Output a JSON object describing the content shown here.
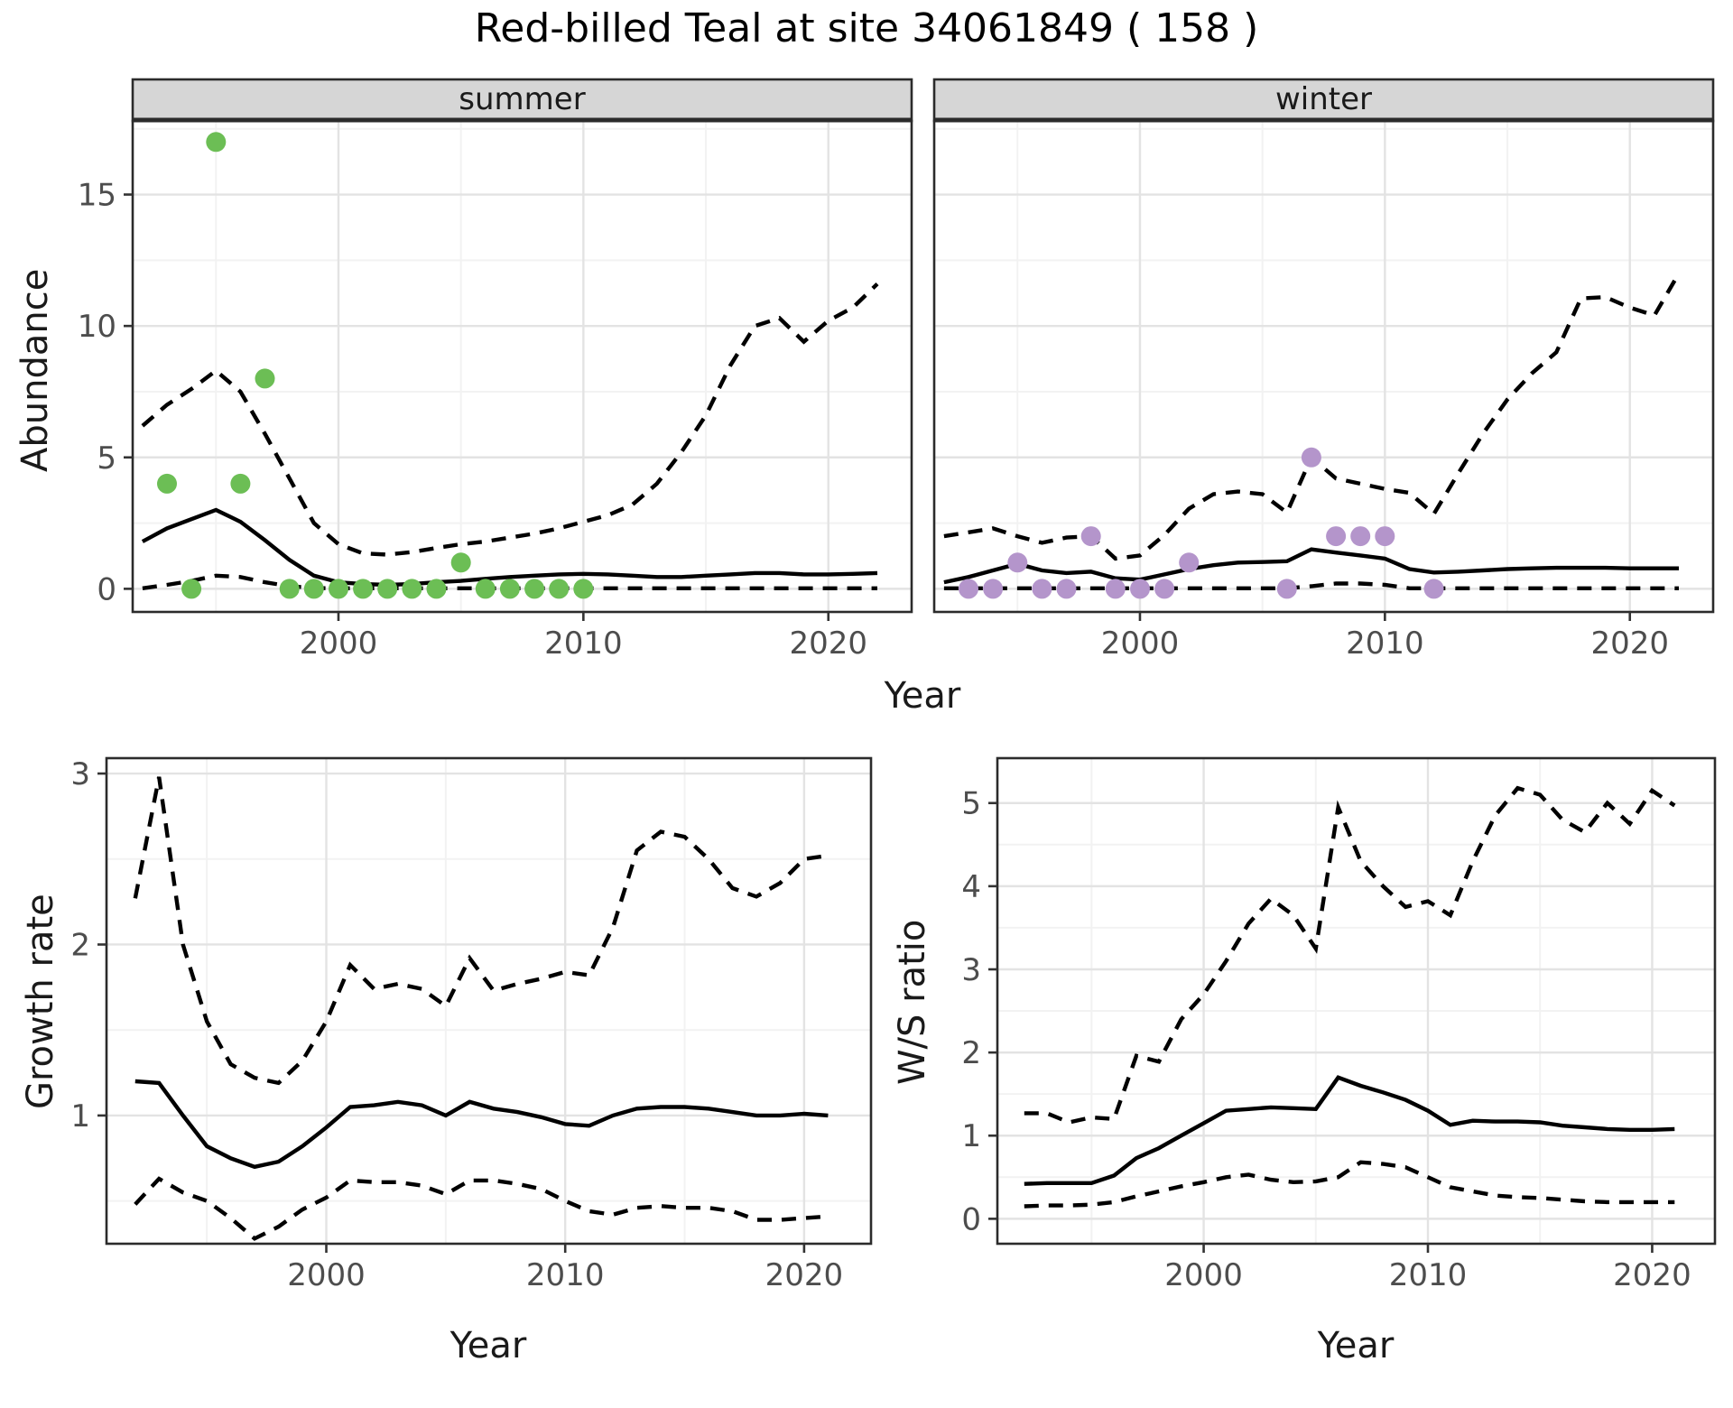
{
  "title": "Red-billed Teal at site 34061849 ( 158 )",
  "axes": {
    "abundance_label": "Abundance",
    "growth_label": "Growth rate",
    "ws_label": "W/S ratio",
    "year_label": "Year"
  },
  "colors": {
    "summer_point": "#6CBE55",
    "winter_point": "#B495CB",
    "line": "#000000",
    "strip_bg": "#D6D6D6",
    "strip_border": "#2B2B2B",
    "panel_border": "#2B2B2B",
    "grid_major": "#E3E3E3",
    "grid_minor": "#F2F2F2",
    "tick_text": "#4D4D4D"
  },
  "chart_data": [
    {
      "type": "line",
      "facet": "summer",
      "ylabel": "Abundance",
      "xlabel": "Year",
      "xlim": [
        1991.6,
        2023.4
      ],
      "ylim": [
        -0.88,
        17.8
      ],
      "x_ticks": [
        2000,
        2010,
        2020
      ],
      "x_minor": [
        1995,
        2005,
        2015
      ],
      "y_ticks": [
        0,
        5,
        10,
        15
      ],
      "y_minor": [
        2.5,
        7.5,
        12.5,
        17.5
      ],
      "years": [
        1992,
        1993,
        1994,
        1995,
        1996,
        1997,
        1998,
        1999,
        2000,
        2001,
        2002,
        2003,
        2004,
        2005,
        2006,
        2007,
        2008,
        2009,
        2010,
        2011,
        2012,
        2013,
        2014,
        2015,
        2016,
        2017,
        2018,
        2019,
        2020,
        2021,
        2022
      ],
      "series": [
        {
          "name": "upper-ci",
          "style": "dashed",
          "values": [
            6.2,
            7.0,
            7.6,
            8.3,
            7.5,
            5.9,
            4.2,
            2.5,
            1.7,
            1.35,
            1.3,
            1.4,
            1.55,
            1.7,
            1.8,
            1.95,
            2.1,
            2.3,
            2.55,
            2.8,
            3.2,
            4.0,
            5.2,
            6.6,
            8.5,
            10.0,
            10.3,
            9.4,
            10.2,
            10.7,
            11.6
          ]
        },
        {
          "name": "lower-ci",
          "style": "dashed",
          "values": [
            0.02,
            0.15,
            0.3,
            0.5,
            0.45,
            0.25,
            0.1,
            0.03,
            0.02,
            0.02,
            0.02,
            0.02,
            0.02,
            0.02,
            0.02,
            0.02,
            0.02,
            0.02,
            0.02,
            0.02,
            0.02,
            0.02,
            0.02,
            0.02,
            0.02,
            0.02,
            0.02,
            0.02,
            0.02,
            0.02,
            0.02
          ]
        },
        {
          "name": "fit",
          "style": "solid",
          "values": [
            1.8,
            2.3,
            2.65,
            3.0,
            2.55,
            1.85,
            1.1,
            0.5,
            0.25,
            0.18,
            0.15,
            0.18,
            0.25,
            0.3,
            0.38,
            0.45,
            0.5,
            0.55,
            0.57,
            0.55,
            0.5,
            0.45,
            0.45,
            0.5,
            0.55,
            0.6,
            0.6,
            0.55,
            0.55,
            0.57,
            0.6
          ]
        }
      ],
      "points": {
        "color_key": "summer_point",
        "years": [
          1993,
          1994,
          1995,
          1996,
          1997,
          1998,
          1999,
          2000,
          2001,
          2002,
          2003,
          2004,
          2005,
          2006,
          2007,
          2008,
          2009,
          2010
        ],
        "values": [
          4,
          0,
          17,
          4,
          8,
          0,
          0,
          0,
          0,
          0,
          0,
          0,
          1,
          0,
          0,
          0,
          0,
          0
        ]
      }
    },
    {
      "type": "line",
      "facet": "winter",
      "ylabel": "Abundance",
      "xlabel": "Year",
      "xlim": [
        1991.6,
        2023.4
      ],
      "ylim": [
        -0.88,
        17.8
      ],
      "x_ticks": [
        2000,
        2010,
        2020
      ],
      "x_minor": [
        1995,
        2005,
        2015
      ],
      "y_ticks": [
        0,
        5,
        10,
        15
      ],
      "y_minor": [
        2.5,
        7.5,
        12.5,
        17.5
      ],
      "years": [
        1992,
        1993,
        1994,
        1995,
        1996,
        1997,
        1998,
        1999,
        2000,
        2001,
        2002,
        2003,
        2004,
        2005,
        2006,
        2007,
        2008,
        2009,
        2010,
        2011,
        2012,
        2013,
        2014,
        2015,
        2016,
        2017,
        2018,
        2019,
        2020,
        2021,
        2022
      ],
      "series": [
        {
          "name": "upper-ci",
          "style": "dashed",
          "values": [
            2.0,
            2.15,
            2.3,
            2.0,
            1.75,
            1.95,
            2.0,
            1.15,
            1.27,
            2.05,
            3.05,
            3.6,
            3.7,
            3.6,
            2.9,
            5.0,
            4.2,
            4.0,
            3.8,
            3.65,
            2.85,
            4.4,
            5.9,
            7.2,
            8.2,
            9.0,
            11.05,
            11.1,
            10.7,
            10.4,
            12.0
          ]
        },
        {
          "name": "lower-ci",
          "style": "dashed",
          "values": [
            0.02,
            0.02,
            0.02,
            0.02,
            0.02,
            0.02,
            0.02,
            0.02,
            0.02,
            0.02,
            0.02,
            0.02,
            0.02,
            0.02,
            0.02,
            0.1,
            0.2,
            0.2,
            0.15,
            0.02,
            0.02,
            0.02,
            0.02,
            0.02,
            0.02,
            0.02,
            0.02,
            0.02,
            0.02,
            0.02,
            0.02
          ]
        },
        {
          "name": "fit",
          "style": "solid",
          "values": [
            0.25,
            0.45,
            0.7,
            0.95,
            0.7,
            0.6,
            0.65,
            0.4,
            0.35,
            0.55,
            0.75,
            0.9,
            1.0,
            1.02,
            1.05,
            1.5,
            1.38,
            1.27,
            1.15,
            0.75,
            0.62,
            0.65,
            0.7,
            0.75,
            0.78,
            0.8,
            0.8,
            0.8,
            0.78,
            0.78,
            0.78
          ]
        }
      ],
      "points": {
        "color_key": "winter_point",
        "years": [
          1993,
          1994,
          1995,
          1996,
          1997,
          1998,
          1999,
          2000,
          2001,
          2002,
          2006,
          2007,
          2008,
          2009,
          2010,
          2012
        ],
        "values": [
          0,
          0,
          1,
          0,
          0,
          2,
          0,
          0,
          0,
          1,
          0,
          5,
          2,
          2,
          2,
          0
        ]
      }
    },
    {
      "type": "line",
      "facet": null,
      "ylabel": "Growth rate",
      "xlabel": "Year",
      "xlim": [
        1990.8,
        2022.8
      ],
      "ylim": [
        0.25,
        3.09
      ],
      "x_ticks": [
        2000,
        2010,
        2020
      ],
      "x_minor": [
        1995,
        2005,
        2015
      ],
      "y_ticks": [
        1,
        2,
        3
      ],
      "y_minor": [
        0.5,
        1.5,
        2.5
      ],
      "years": [
        1992,
        1993,
        1994,
        1995,
        1996,
        1997,
        1998,
        1999,
        2000,
        2001,
        2002,
        2003,
        2004,
        2005,
        2006,
        2007,
        2008,
        2009,
        2010,
        2011,
        2012,
        2013,
        2014,
        2015,
        2016,
        2017,
        2018,
        2019,
        2020,
        2021
      ],
      "series": [
        {
          "name": "upper-ci",
          "style": "dashed",
          "values": [
            2.27,
            2.98,
            2.0,
            1.55,
            1.3,
            1.22,
            1.19,
            1.32,
            1.55,
            1.88,
            1.74,
            1.77,
            1.74,
            1.64,
            1.92,
            1.73,
            1.77,
            1.8,
            1.84,
            1.82,
            2.1,
            2.55,
            2.66,
            2.63,
            2.5,
            2.33,
            2.28,
            2.36,
            2.5,
            2.52
          ]
        },
        {
          "name": "lower-ci",
          "style": "dashed",
          "values": [
            0.48,
            0.63,
            0.55,
            0.5,
            0.4,
            0.28,
            0.35,
            0.45,
            0.52,
            0.62,
            0.61,
            0.61,
            0.59,
            0.54,
            0.62,
            0.62,
            0.6,
            0.57,
            0.5,
            0.44,
            0.42,
            0.46,
            0.47,
            0.46,
            0.46,
            0.44,
            0.39,
            0.39,
            0.4,
            0.41
          ]
        },
        {
          "name": "fit",
          "style": "solid",
          "values": [
            1.2,
            1.19,
            1.0,
            0.82,
            0.75,
            0.7,
            0.73,
            0.82,
            0.93,
            1.05,
            1.06,
            1.08,
            1.06,
            1.0,
            1.08,
            1.04,
            1.02,
            0.99,
            0.95,
            0.94,
            1.0,
            1.04,
            1.05,
            1.05,
            1.04,
            1.02,
            1.0,
            1.0,
            1.01,
            1.0
          ]
        }
      ],
      "points": null
    },
    {
      "type": "line",
      "facet": null,
      "ylabel": "W/S ratio",
      "xlabel": "Year",
      "xlim": [
        1990.8,
        2022.8
      ],
      "ylim": [
        -0.3,
        5.54
      ],
      "x_ticks": [
        2000,
        2010,
        2020
      ],
      "x_minor": [
        1995,
        2005,
        2015
      ],
      "y_ticks": [
        0,
        1,
        2,
        3,
        4,
        5
      ],
      "y_minor": [
        0.5,
        1.5,
        2.5,
        3.5,
        4.5
      ],
      "years": [
        1992,
        1993,
        1994,
        1995,
        1996,
        1997,
        1998,
        1999,
        2000,
        2001,
        2002,
        2003,
        2004,
        2005,
        2006,
        2007,
        2008,
        2009,
        2010,
        2011,
        2012,
        2013,
        2014,
        2015,
        2016,
        2017,
        2018,
        2019,
        2020,
        2021
      ],
      "series": [
        {
          "name": "upper-ci",
          "style": "dashed",
          "values": [
            1.27,
            1.27,
            1.16,
            1.22,
            1.2,
            1.96,
            1.89,
            2.4,
            2.7,
            3.1,
            3.55,
            3.85,
            3.65,
            3.25,
            4.95,
            4.3,
            4.0,
            3.75,
            3.82,
            3.65,
            4.3,
            4.85,
            5.18,
            5.1,
            4.8,
            4.65,
            5.0,
            4.75,
            5.15,
            4.97
          ]
        },
        {
          "name": "lower-ci",
          "style": "dashed",
          "values": [
            0.15,
            0.16,
            0.16,
            0.17,
            0.2,
            0.27,
            0.33,
            0.39,
            0.44,
            0.5,
            0.53,
            0.47,
            0.44,
            0.45,
            0.5,
            0.68,
            0.66,
            0.62,
            0.5,
            0.38,
            0.33,
            0.28,
            0.26,
            0.25,
            0.23,
            0.21,
            0.2,
            0.2,
            0.2,
            0.2
          ]
        },
        {
          "name": "fit",
          "style": "solid",
          "values": [
            0.42,
            0.43,
            0.43,
            0.43,
            0.52,
            0.73,
            0.85,
            1.0,
            1.15,
            1.3,
            1.32,
            1.34,
            1.33,
            1.32,
            1.7,
            1.6,
            1.52,
            1.43,
            1.3,
            1.13,
            1.18,
            1.17,
            1.17,
            1.16,
            1.12,
            1.1,
            1.08,
            1.07,
            1.07,
            1.08
          ]
        }
      ],
      "points": null
    }
  ]
}
